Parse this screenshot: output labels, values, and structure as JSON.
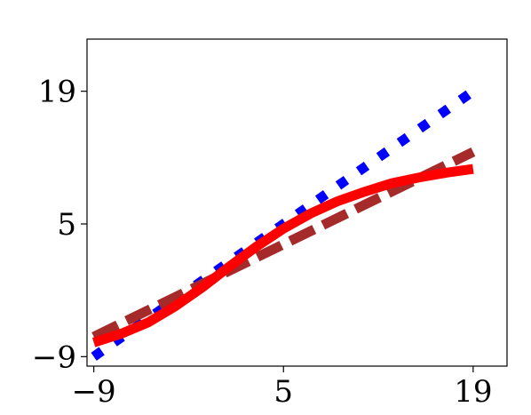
{
  "chart_data": {
    "type": "line",
    "xlim": [
      -9.5,
      21.5
    ],
    "ylim": [
      -10,
      24.5
    ],
    "xticks": [
      {
        "value": -9,
        "label": "−9"
      },
      {
        "value": 5,
        "label": "5"
      },
      {
        "value": 19,
        "label": "19"
      }
    ],
    "yticks": [
      {
        "value": -9,
        "label": "−9"
      },
      {
        "value": 5,
        "label": "5"
      },
      {
        "value": 19,
        "label": "19"
      }
    ],
    "grid": false,
    "legend": "none",
    "series": [
      {
        "style": "dotted",
        "color": "#0000ff",
        "x": [
          -9,
          19
        ],
        "y": [
          -9,
          19
        ]
      },
      {
        "style": "dashed",
        "color": "#a52a2a",
        "x": [
          -9,
          19
        ],
        "y": [
          -6.9,
          12.6
        ]
      },
      {
        "style": "solid",
        "color": "#ff0000",
        "x": [
          -9,
          -7,
          -5,
          -3,
          -1,
          1,
          3,
          5,
          7,
          9,
          11,
          13,
          15,
          17,
          19
        ],
        "y": [
          -7.5,
          -6.6,
          -5.4,
          -3.7,
          -1.7,
          0.5,
          2.6,
          4.5,
          6.1,
          7.4,
          8.4,
          9.3,
          9.9,
          10.4,
          10.8
        ]
      }
    ]
  }
}
